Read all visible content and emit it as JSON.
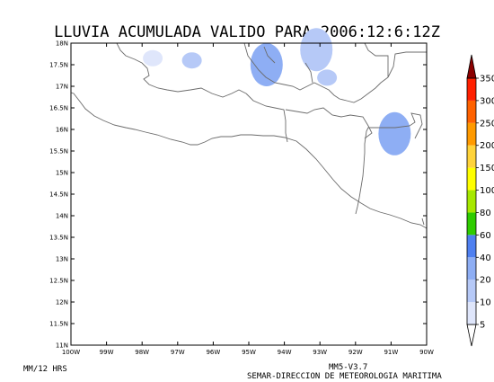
{
  "title": "LLUVIA ACUMULADA VALIDO PARA 2006:12:6:12Z",
  "footer": {
    "left": "MM/12 HRS",
    "model": "MM5-V3.7",
    "agency": "SEMAR-DIRECCION DE METEOROLOGIA MARITIMA"
  },
  "map": {
    "lat_labels": [
      "18N",
      "17.5N",
      "17N",
      "16.5N",
      "16N",
      "15.5N",
      "15N",
      "14.5N",
      "14N",
      "13.5N",
      "13N",
      "12.5N",
      "12N",
      "11.5N",
      "11N"
    ],
    "lon_labels": [
      "100W",
      "99W",
      "98W",
      "97W",
      "96W",
      "95W",
      "94W",
      "93W",
      "92W",
      "91W",
      "90W"
    ],
    "lat_range": [
      11,
      18
    ],
    "lon_range": [
      -100,
      -90
    ]
  },
  "colorbar": {
    "levels": [
      "5",
      "10",
      "20",
      "40",
      "60",
      "80",
      "100",
      "150",
      "200",
      "250",
      "300",
      "350"
    ],
    "colors": [
      "#dfe6fb",
      "#b6c9f7",
      "#8eaef4",
      "#4f80f0",
      "#2fcc00",
      "#a6e800",
      "#ffff00",
      "#ffd33a",
      "#ff9a00",
      "#ff6200",
      "#ff2000",
      "#dd0000",
      "#b30000",
      "#8b0000"
    ]
  },
  "rain_areas": [
    {
      "lon": -94.5,
      "lat": 17.6,
      "level": "20",
      "color": "#4f80f0"
    },
    {
      "lon": -94.5,
      "lat": 17.5,
      "level": "10",
      "color": "#8eaef4"
    },
    {
      "lon": -93.1,
      "lat": 17.85,
      "level": "10",
      "color": "#b6c9f7"
    },
    {
      "lon": -90.9,
      "lat": 15.9,
      "level": "10",
      "color": "#8eaef4"
    },
    {
      "lon": -92.8,
      "lat": 17.2,
      "level": "5",
      "color": "#b6c9f7"
    },
    {
      "lon": -96.6,
      "lat": 17.6,
      "level": "5",
      "color": "#b6c9f7"
    },
    {
      "lon": -97.7,
      "lat": 17.65,
      "level": "5",
      "color": "#dfe6fb"
    }
  ]
}
